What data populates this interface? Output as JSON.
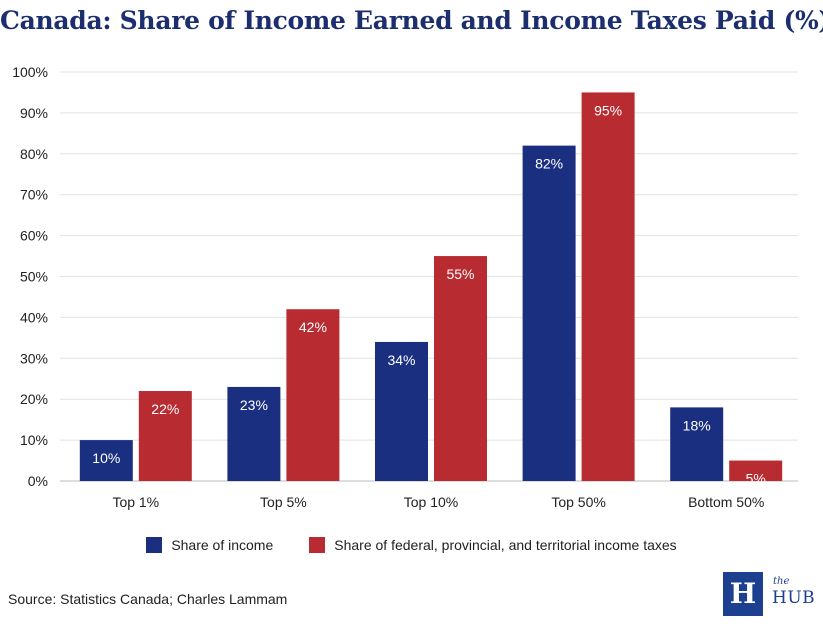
{
  "chart_data": {
    "type": "bar",
    "title": "Canada: Share of Income Earned and Income Taxes Paid (%)",
    "categories": [
      "Top 1%",
      "Top 5%",
      "Top 10%",
      "Top 50%",
      "Bottom 50%"
    ],
    "series": [
      {
        "name": "Share of income",
        "color": "#1b2f80",
        "values": [
          10,
          23,
          34,
          82,
          18
        ]
      },
      {
        "name": "Share of federal, provincial, and territorial income taxes",
        "color": "#b82b30",
        "values": [
          22,
          42,
          55,
          95,
          5
        ]
      }
    ],
    "ylim": [
      0,
      100
    ],
    "yticks": [
      "0%",
      "10%",
      "20%",
      "30%",
      "40%",
      "50%",
      "60%",
      "70%",
      "80%",
      "90%",
      "100%"
    ],
    "data_labels": [
      [
        "10%",
        "23%",
        "34%",
        "82%",
        "18%"
      ],
      [
        "22%",
        "42%",
        "55%",
        "95%",
        "5%"
      ]
    ],
    "grid": true,
    "legend_position": "bottom"
  },
  "source": "Source: Statistics Canada; Charles Lammam",
  "logo": {
    "mark": "H",
    "the": "the",
    "name": "HUB",
    "color": "#1c3f8f"
  }
}
